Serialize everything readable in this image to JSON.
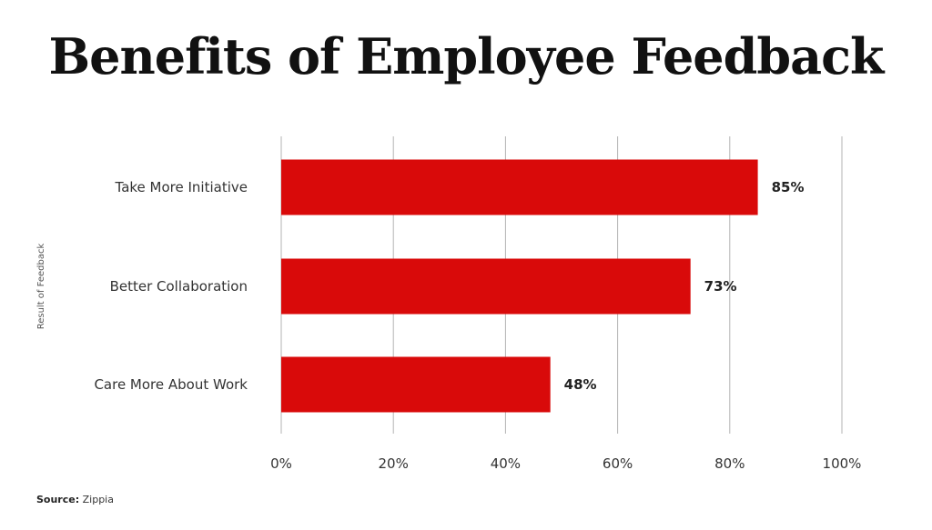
{
  "title": "Benefits of Employee Feedback",
  "source": {
    "label": "Source:",
    "value": "Zippia"
  },
  "colors": {
    "bar": "#d90a0a",
    "grid": "#b3b3b3",
    "text": "#333333"
  },
  "chart_data": {
    "type": "bar",
    "orientation": "horizontal",
    "title": "Benefits of Employee Feedback",
    "ylabel": "Result of Feedback",
    "xlabel": "",
    "categories": [
      "Take More Initiative",
      "Better Collaboration",
      "Care More About Work"
    ],
    "values": [
      85,
      73,
      48
    ],
    "value_labels": [
      "85%",
      "73%",
      "48%"
    ],
    "xlim": [
      0,
      100
    ],
    "x_ticks": [
      0,
      20,
      40,
      60,
      80,
      100
    ],
    "x_tick_labels": [
      "0%",
      "20%",
      "40%",
      "60%",
      "80%",
      "100%"
    ],
    "grid": "vertical"
  }
}
